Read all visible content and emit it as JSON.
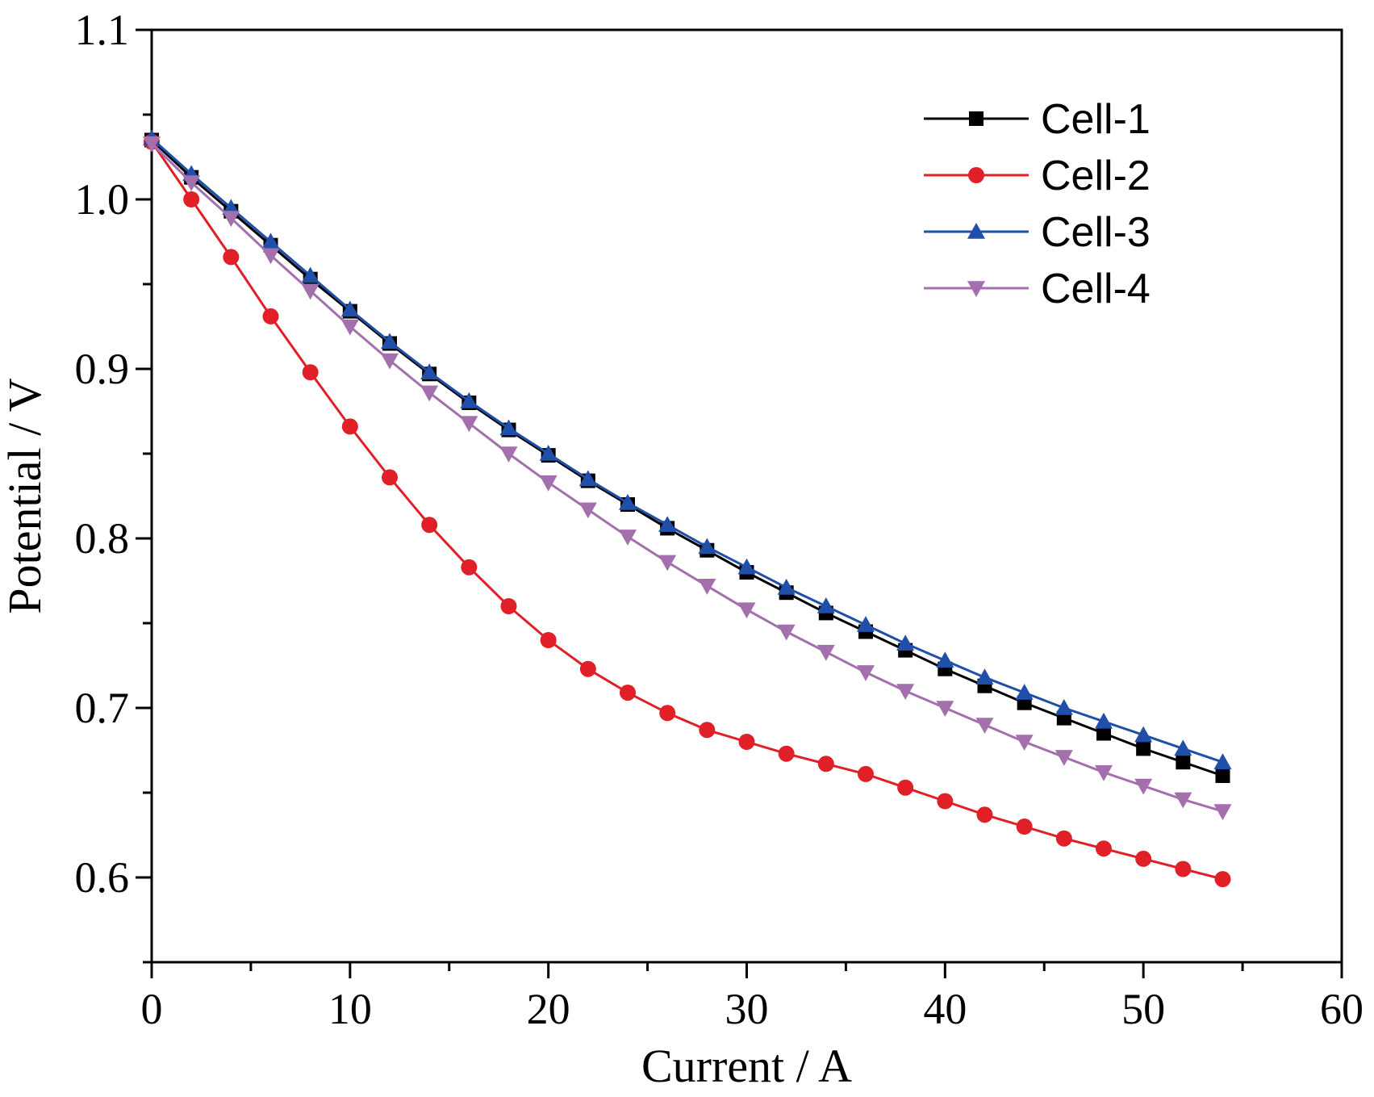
{
  "chart_data": {
    "type": "line",
    "title": "",
    "xlabel": "Current / A",
    "ylabel": "Potential / V",
    "xlim": [
      0,
      60
    ],
    "ylim": [
      0.55,
      1.1
    ],
    "x_ticks": [
      0,
      10,
      20,
      30,
      40,
      50,
      60
    ],
    "x_tick_labels": [
      "0",
      "10",
      "20",
      "30",
      "40",
      "50",
      "60"
    ],
    "y_ticks": [
      0.6,
      0.7,
      0.8,
      0.9,
      1.0,
      1.1
    ],
    "y_tick_labels": [
      "0.6",
      "0.7",
      "0.8",
      "0.9",
      "1.0",
      "1.1"
    ],
    "grid": false,
    "legend_position": "top-right",
    "x": [
      0,
      2,
      4,
      6,
      8,
      10,
      12,
      14,
      16,
      18,
      20,
      22,
      24,
      26,
      28,
      30,
      32,
      34,
      36,
      38,
      40,
      42,
      44,
      46,
      48,
      50,
      52,
      54
    ],
    "series": [
      {
        "name": "Cell-1",
        "color": "#000000",
        "marker": "square",
        "values": [
          1.035,
          1.013,
          0.993,
          0.973,
          0.953,
          0.934,
          0.915,
          0.897,
          0.88,
          0.864,
          0.849,
          0.834,
          0.82,
          0.806,
          0.793,
          0.78,
          0.768,
          0.756,
          0.745,
          0.734,
          0.723,
          0.713,
          0.703,
          0.694,
          0.685,
          0.676,
          0.668,
          0.66
        ]
      },
      {
        "name": "Cell-2",
        "color": "#e01f26",
        "marker": "circle",
        "values": [
          1.034,
          1.0,
          0.966,
          0.931,
          0.898,
          0.866,
          0.836,
          0.808,
          0.783,
          0.76,
          0.74,
          0.723,
          0.709,
          0.697,
          0.687,
          0.68,
          0.673,
          0.667,
          0.661,
          0.653,
          0.645,
          0.637,
          0.63,
          0.623,
          0.617,
          0.611,
          0.605,
          0.599
        ]
      },
      {
        "name": "Cell-3",
        "color": "#1f4fa8",
        "marker": "triangle-up",
        "values": [
          1.036,
          1.015,
          0.995,
          0.975,
          0.955,
          0.935,
          0.916,
          0.898,
          0.881,
          0.865,
          0.85,
          0.835,
          0.821,
          0.808,
          0.795,
          0.783,
          0.771,
          0.76,
          0.749,
          0.738,
          0.728,
          0.718,
          0.709,
          0.7,
          0.692,
          0.684,
          0.676,
          0.668
        ]
      },
      {
        "name": "Cell-4",
        "color": "#a46fad",
        "marker": "triangle-down",
        "values": [
          1.033,
          1.01,
          0.989,
          0.967,
          0.946,
          0.925,
          0.905,
          0.886,
          0.868,
          0.85,
          0.833,
          0.817,
          0.801,
          0.786,
          0.772,
          0.758,
          0.745,
          0.733,
          0.721,
          0.71,
          0.7,
          0.69,
          0.68,
          0.671,
          0.662,
          0.654,
          0.646,
          0.639
        ]
      }
    ]
  }
}
